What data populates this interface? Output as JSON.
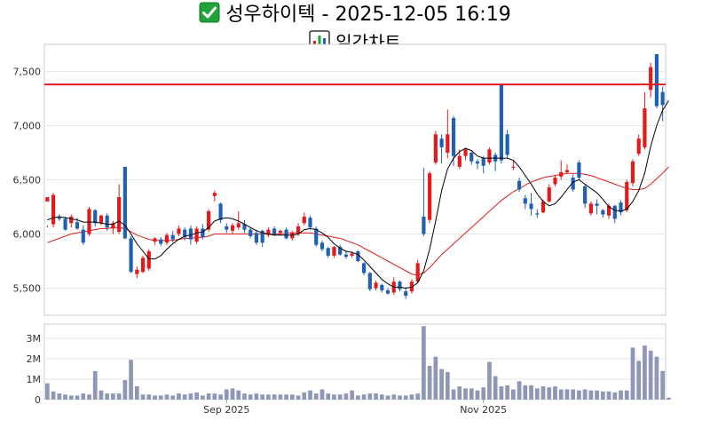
{
  "header": {
    "title": "성우하이텍 - 2025-12-05 16:19",
    "subtitle": "일간차트",
    "title_icon": "check-mark-icon",
    "subtitle_icon": "bar-chart-icon"
  },
  "colors": {
    "up": "#e31a1c",
    "down": "#1f5fb4",
    "ma_short": "#000000",
    "ma_long": "#e31a1c",
    "reference_line": "#e31a1c",
    "volume": "#8f97b8",
    "check_bg": "#1fa33a"
  },
  "chart_data": [
    {
      "type": "candlestick",
      "title": "",
      "ylim": [
        5250,
        7750
      ],
      "yticks": [
        5500,
        6000,
        6500,
        7000,
        7500
      ],
      "ytick_labels": [
        "5,500",
        "6,000",
        "6,500",
        "7,000",
        "7,500"
      ],
      "reference_line": 7380,
      "grid": true,
      "candles": [
        [
          6300,
          6340,
          6080,
          6060
        ],
        [
          6090,
          6360,
          6380,
          6060
        ],
        [
          6160,
          6140,
          6180,
          6120
        ],
        [
          6140,
          6040,
          6160,
          6030
        ],
        [
          6100,
          6160,
          6180,
          6060
        ],
        [
          6110,
          6050,
          6150,
          6040
        ],
        [
          6040,
          5920,
          6080,
          5900
        ],
        [
          6000,
          6230,
          6250,
          5980
        ],
        [
          6220,
          6100,
          6230,
          6070
        ],
        [
          6100,
          6170,
          6180,
          6080
        ],
        [
          6170,
          6060,
          6190,
          6030
        ],
        [
          6050,
          6100,
          6120,
          6000
        ],
        [
          6020,
          6340,
          6460,
          6000
        ],
        [
          6620,
          5960,
          6620,
          5950
        ],
        [
          5960,
          5650,
          5980,
          5640
        ],
        [
          5630,
          5670,
          5700,
          5590
        ],
        [
          5650,
          5780,
          5800,
          5640
        ],
        [
          5680,
          5840,
          5860,
          5660
        ],
        [
          5930,
          5960,
          5970,
          5900
        ],
        [
          5950,
          5910,
          5970,
          5890
        ],
        [
          5920,
          5990,
          6010,
          5900
        ],
        [
          5990,
          5950,
          6030,
          5920
        ],
        [
          6000,
          6050,
          6080,
          5980
        ],
        [
          6040,
          5970,
          6060,
          5940
        ],
        [
          6050,
          5950,
          6080,
          5900
        ],
        [
          5930,
          6050,
          6070,
          5910
        ],
        [
          6050,
          5970,
          6090,
          5950
        ],
        [
          6040,
          6210,
          6230,
          6020
        ],
        [
          6350,
          6380,
          6400,
          6300
        ],
        [
          6280,
          6130,
          6290,
          6100
        ],
        [
          6070,
          6040,
          6100,
          6010
        ],
        [
          6030,
          6080,
          6100,
          6000
        ],
        [
          6060,
          6100,
          6210,
          6040
        ],
        [
          6090,
          6040,
          6130,
          6010
        ],
        [
          6040,
          5980,
          6060,
          5960
        ],
        [
          6010,
          5920,
          6040,
          5900
        ],
        [
          6030,
          5920,
          6040,
          5880
        ],
        [
          5990,
          6040,
          6060,
          5970
        ],
        [
          6050,
          6000,
          6070,
          5980
        ],
        [
          6010,
          6030,
          6040,
          5990
        ],
        [
          6040,
          5960,
          6060,
          5950
        ],
        [
          5960,
          6010,
          6030,
          5940
        ],
        [
          6000,
          6070,
          6100,
          5980
        ],
        [
          6100,
          6160,
          6200,
          6080
        ],
        [
          6150,
          6060,
          6170,
          6040
        ],
        [
          6050,
          5900,
          6070,
          5880
        ],
        [
          5920,
          5860,
          5940,
          5840
        ],
        [
          5870,
          5800,
          5880,
          5780
        ],
        [
          5800,
          5880,
          5890,
          5780
        ],
        [
          5880,
          5810,
          5900,
          5800
        ],
        [
          5810,
          5790,
          5840,
          5770
        ],
        [
          5800,
          5820,
          5840,
          5780
        ],
        [
          5840,
          5750,
          5850,
          5740
        ],
        [
          5730,
          5640,
          5740,
          5620
        ],
        [
          5640,
          5490,
          5650,
          5470
        ],
        [
          5500,
          5550,
          5570,
          5480
        ],
        [
          5530,
          5480,
          5540,
          5460
        ],
        [
          5480,
          5450,
          5500,
          5440
        ],
        [
          5460,
          5560,
          5600,
          5440
        ],
        [
          5560,
          5490,
          5570,
          5470
        ],
        [
          5470,
          5430,
          5510,
          5400
        ],
        [
          5470,
          5560,
          5580,
          5450
        ],
        [
          5560,
          5730,
          5760,
          5550
        ],
        [
          6160,
          6000,
          6610,
          5980
        ],
        [
          6130,
          6560,
          6580,
          6100
        ],
        [
          6660,
          6920,
          6950,
          6640
        ],
        [
          6880,
          6800,
          6920,
          6650
        ],
        [
          6750,
          6920,
          7150,
          6700
        ],
        [
          7070,
          6720,
          7090,
          6630
        ],
        [
          6620,
          6720,
          6780,
          6600
        ],
        [
          6720,
          6780,
          6800,
          6680
        ],
        [
          6750,
          6670,
          6760,
          6640
        ],
        [
          6670,
          6650,
          6690,
          6600
        ],
        [
          6700,
          6630,
          6720,
          6560
        ],
        [
          6660,
          6780,
          6800,
          6640
        ],
        [
          6730,
          6670,
          6750,
          6580
        ],
        [
          7380,
          6680,
          7380,
          6650
        ],
        [
          6920,
          6730,
          6960,
          6700
        ],
        [
          6620,
          6620,
          6680,
          6590
        ],
        [
          6490,
          6410,
          6520,
          6390
        ],
        [
          6330,
          6280,
          6360,
          6230
        ],
        [
          6280,
          6230,
          6380,
          6170
        ],
        [
          6190,
          6180,
          6230,
          6150
        ],
        [
          6200,
          6300,
          6320,
          6190
        ],
        [
          6300,
          6430,
          6460,
          6290
        ],
        [
          6460,
          6520,
          6540,
          6440
        ],
        [
          6530,
          6570,
          6680,
          6500
        ],
        [
          6570,
          6590,
          6640,
          6560
        ],
        [
          6520,
          6410,
          6550,
          6390
        ],
        [
          6660,
          6520,
          6680,
          6500
        ],
        [
          6440,
          6280,
          6460,
          6240
        ],
        [
          6190,
          6280,
          6300,
          6170
        ],
        [
          6280,
          6260,
          6320,
          6180
        ],
        [
          6220,
          6180,
          6230,
          6150
        ],
        [
          6170,
          6260,
          6280,
          6140
        ],
        [
          6260,
          6140,
          6270,
          6100
        ],
        [
          6290,
          6200,
          6310,
          6170
        ],
        [
          6220,
          6480,
          6500,
          6200
        ],
        [
          6470,
          6670,
          6690,
          6440
        ],
        [
          6740,
          6880,
          6920,
          6720
        ],
        [
          6800,
          7160,
          7310,
          6780
        ],
        [
          7330,
          7540,
          7580,
          7260
        ],
        [
          7660,
          7180,
          7660,
          7160
        ],
        [
          7310,
          7190,
          7360,
          7040
        ]
      ],
      "ma_short": [
        6130,
        6150,
        6160,
        6150,
        6140,
        6130,
        6110,
        6110,
        6110,
        6100,
        6090,
        6090,
        6120,
        6080,
        6000,
        5910,
        5840,
        5770,
        5770,
        5800,
        5860,
        5910,
        5950,
        5980,
        5990,
        6010,
        6020,
        6060,
        6120,
        6140,
        6150,
        6140,
        6120,
        6090,
        6060,
        6030,
        6010,
        6000,
        5990,
        5990,
        5990,
        5990,
        6000,
        6040,
        6050,
        6040,
        6010,
        5970,
        5910,
        5870,
        5840,
        5830,
        5810,
        5760,
        5700,
        5640,
        5580,
        5540,
        5510,
        5510,
        5500,
        5510,
        5550,
        5660,
        5860,
        6120,
        6400,
        6600,
        6700,
        6760,
        6790,
        6770,
        6720,
        6700,
        6700,
        6700,
        6700,
        6700,
        6680,
        6620,
        6540,
        6460,
        6370,
        6300,
        6260,
        6280,
        6340,
        6410,
        6480,
        6500,
        6460,
        6420,
        6380,
        6320,
        6250,
        6220,
        6210,
        6230,
        6300,
        6400,
        6560,
        6810,
        7000,
        7140,
        7230
      ],
      "ma_long": [
        5920,
        5940,
        5960,
        5980,
        6000,
        6010,
        6020,
        6030,
        6040,
        6050,
        6050,
        6060,
        6060,
        6050,
        6020,
        5990,
        5970,
        5950,
        5940,
        5940,
        5940,
        5940,
        5950,
        5960,
        5960,
        5970,
        5970,
        5980,
        6000,
        6000,
        6000,
        6000,
        6000,
        6000,
        6000,
        6000,
        6000,
        6000,
        6000,
        6000,
        6010,
        6010,
        6010,
        6010,
        6010,
        6000,
        5990,
        5980,
        5970,
        5960,
        5940,
        5920,
        5900,
        5870,
        5840,
        5810,
        5780,
        5750,
        5720,
        5690,
        5660,
        5630,
        5620,
        5640,
        5690,
        5750,
        5810,
        5860,
        5910,
        5960,
        6010,
        6060,
        6110,
        6160,
        6210,
        6260,
        6310,
        6350,
        6390,
        6420,
        6450,
        6480,
        6500,
        6520,
        6530,
        6540,
        6550,
        6560,
        6560,
        6560,
        6550,
        6540,
        6520,
        6500,
        6480,
        6460,
        6440,
        6420,
        6410,
        6410,
        6420,
        6460,
        6510,
        6560,
        6620
      ]
    },
    {
      "type": "bar",
      "title": "",
      "ylim": [
        0,
        3700000
      ],
      "yticks": [
        0,
        1000000,
        2000000,
        3000000
      ],
      "ytick_labels": [
        "0",
        "1M",
        "2M",
        "3M"
      ],
      "x_tick_labels": [
        {
          "index": 30,
          "label": "Sep 2025"
        },
        {
          "index": 73,
          "label": "Nov 2025"
        }
      ],
      "values": [
        800000,
        400000,
        300000,
        250000,
        200000,
        200000,
        300000,
        250000,
        1400000,
        450000,
        300000,
        300000,
        300000,
        950000,
        1950000,
        650000,
        250000,
        250000,
        200000,
        200000,
        250000,
        200000,
        300000,
        250000,
        300000,
        350000,
        200000,
        300000,
        300000,
        250000,
        500000,
        550000,
        450000,
        300000,
        250000,
        300000,
        250000,
        250000,
        250000,
        250000,
        250000,
        250000,
        200000,
        350000,
        450000,
        300000,
        500000,
        300000,
        250000,
        250000,
        300000,
        450000,
        200000,
        250000,
        300000,
        300000,
        250000,
        200000,
        250000,
        200000,
        200000,
        250000,
        300000,
        3600000,
        1650000,
        2100000,
        1500000,
        1350000,
        500000,
        650000,
        550000,
        550000,
        450000,
        600000,
        1850000,
        1150000,
        650000,
        700000,
        500000,
        900000,
        700000,
        700000,
        550000,
        650000,
        600000,
        650000,
        500000,
        500000,
        500000,
        450000,
        500000,
        450000,
        450000,
        400000,
        400000,
        350000,
        450000,
        450000,
        2550000,
        1900000,
        2650000,
        2400000,
        2100000,
        1400000,
        100000
      ]
    }
  ]
}
